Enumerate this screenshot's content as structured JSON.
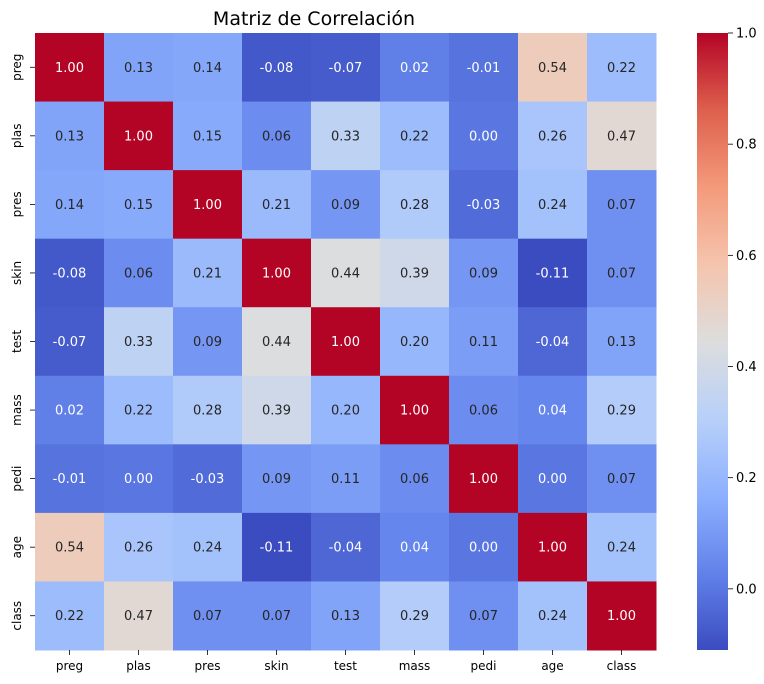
{
  "chart_data": {
    "type": "heatmap",
    "title": "Matriz de Correlación",
    "xlabel": "",
    "ylabel": "",
    "x_categories": [
      "preg",
      "plas",
      "pres",
      "skin",
      "test",
      "mass",
      "pedi",
      "age",
      "class"
    ],
    "y_categories": [
      "preg",
      "plas",
      "pres",
      "skin",
      "test",
      "mass",
      "pedi",
      "age",
      "class"
    ],
    "values": [
      [
        1.0,
        0.13,
        0.14,
        -0.08,
        -0.07,
        0.02,
        -0.01,
        0.54,
        0.22
      ],
      [
        0.13,
        1.0,
        0.15,
        0.06,
        0.33,
        0.22,
        0.0,
        0.26,
        0.47
      ],
      [
        0.14,
        0.15,
        1.0,
        0.21,
        0.09,
        0.28,
        -0.03,
        0.24,
        0.07
      ],
      [
        -0.08,
        0.06,
        0.21,
        1.0,
        0.44,
        0.39,
        0.09,
        -0.11,
        0.07
      ],
      [
        -0.07,
        0.33,
        0.09,
        0.44,
        1.0,
        0.2,
        0.11,
        -0.04,
        0.13
      ],
      [
        0.02,
        0.22,
        0.28,
        0.39,
        0.2,
        1.0,
        0.06,
        0.04,
        0.29
      ],
      [
        -0.01,
        0.0,
        -0.03,
        0.09,
        0.11,
        0.06,
        1.0,
        0.0,
        0.07
      ],
      [
        0.54,
        0.26,
        0.24,
        -0.11,
        -0.04,
        0.04,
        0.0,
        1.0,
        0.24
      ],
      [
        0.22,
        0.47,
        0.07,
        0.07,
        0.13,
        0.29,
        0.07,
        0.24,
        1.0
      ]
    ],
    "cell_label_format": "2 decimals",
    "colormap": "coolwarm",
    "vmin": -0.11,
    "vmax": 1.0,
    "colorbar": {
      "ticks": [
        0.0,
        0.2,
        0.4,
        0.6,
        0.8,
        1.0
      ],
      "tick_labels": [
        "0.0",
        "0.2",
        "0.4",
        "0.6",
        "0.8",
        "1.0"
      ],
      "placement": "right"
    },
    "grid": false
  }
}
